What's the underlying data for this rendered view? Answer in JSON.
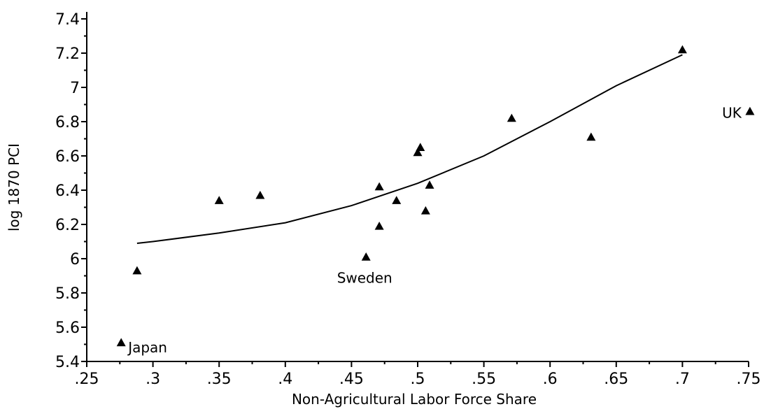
{
  "chart_data": {
    "type": "scatter",
    "title": "",
    "xlabel": "Non-Agricultural Labor Force Share",
    "ylabel": "log 1870 PCI",
    "xlim": [
      0.25,
      0.75
    ],
    "ylim": [
      5.4,
      7.4
    ],
    "x_ticks": [
      0.25,
      0.3,
      0.35,
      0.4,
      0.45,
      0.5,
      0.55,
      0.6,
      0.65,
      0.7,
      0.75
    ],
    "x_tick_labels": [
      ".25",
      ".3",
      ".35",
      ".4",
      ".45",
      ".5",
      ".55",
      ".6",
      ".65",
      ".7",
      ".75"
    ],
    "y_ticks": [
      5.4,
      5.6,
      5.8,
      6,
      6.2,
      6.4,
      6.6,
      6.8,
      7,
      7.2,
      7.4
    ],
    "y_tick_labels": [
      "5.4",
      "5.6",
      "5.8",
      "6",
      "6.2",
      "6.4",
      "6.6",
      "6.8",
      "7",
      "7.2",
      "7.4"
    ],
    "grid": false,
    "marker": "triangle",
    "points": [
      {
        "x": 0.276,
        "y": 5.51,
        "label": "Japan"
      },
      {
        "x": 0.288,
        "y": 5.93
      },
      {
        "x": 0.35,
        "y": 6.34
      },
      {
        "x": 0.381,
        "y": 6.37
      },
      {
        "x": 0.461,
        "y": 6.01,
        "label": "Sweden"
      },
      {
        "x": 0.471,
        "y": 6.19
      },
      {
        "x": 0.471,
        "y": 6.42
      },
      {
        "x": 0.484,
        "y": 6.34
      },
      {
        "x": 0.5,
        "y": 6.62
      },
      {
        "x": 0.502,
        "y": 6.65
      },
      {
        "x": 0.506,
        "y": 6.28
      },
      {
        "x": 0.509,
        "y": 6.43
      },
      {
        "x": 0.571,
        "y": 6.82
      },
      {
        "x": 0.631,
        "y": 6.71
      },
      {
        "x": 0.7,
        "y": 7.22
      },
      {
        "x": 0.751,
        "y": 6.86,
        "label": "UK"
      }
    ],
    "fit_line": {
      "x": [
        0.288,
        0.3,
        0.35,
        0.4,
        0.45,
        0.5,
        0.55,
        0.6,
        0.65,
        0.7
      ],
      "y": [
        6.09,
        6.1,
        6.15,
        6.21,
        6.31,
        6.44,
        6.6,
        6.8,
        7.01,
        7.19
      ]
    }
  }
}
